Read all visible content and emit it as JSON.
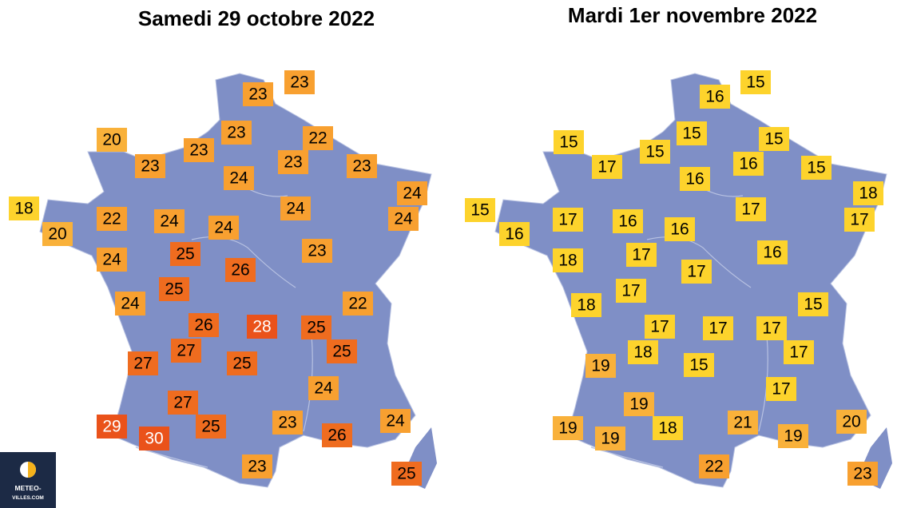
{
  "maps": [
    {
      "title": "Samedi 29 octobre 2022",
      "labels": [
        23,
        23,
        20,
        23,
        22,
        23,
        23,
        23,
        23,
        24,
        24,
        18,
        24,
        24,
        22,
        24,
        24,
        20,
        25,
        23,
        24,
        26,
        25,
        24,
        22,
        26,
        28,
        25,
        27,
        25,
        27,
        25,
        24,
        27,
        24,
        29,
        25,
        23,
        30,
        26,
        23,
        25
      ]
    },
    {
      "title": "Mardi 1er novembre 2022",
      "labels": [
        15,
        16,
        15,
        15,
        15,
        15,
        17,
        16,
        16,
        15,
        18,
        15,
        17,
        17,
        17,
        16,
        16,
        16,
        17,
        16,
        18,
        17,
        17,
        18,
        15,
        17,
        17,
        17,
        18,
        17,
        15,
        19,
        17,
        19,
        19,
        18,
        21,
        19,
        20,
        19,
        22,
        23
      ]
    }
  ],
  "logo": {
    "line1": "METEO-",
    "line2": "VILLES.COM"
  }
}
